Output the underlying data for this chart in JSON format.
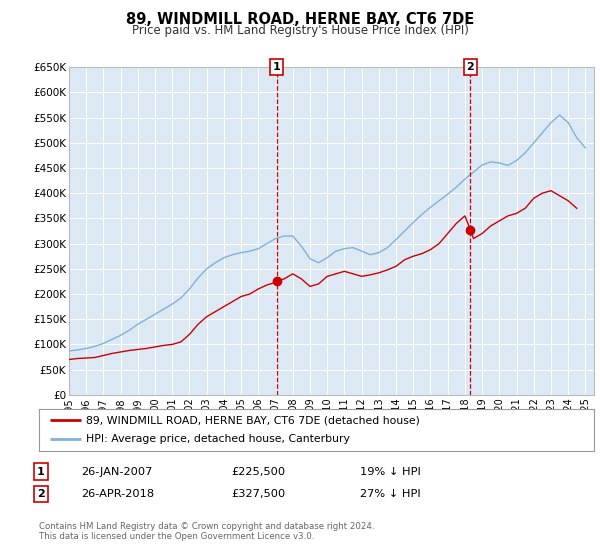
{
  "title": "89, WINDMILL ROAD, HERNE BAY, CT6 7DE",
  "subtitle": "Price paid vs. HM Land Registry's House Price Index (HPI)",
  "bg_color": "#dce9f5",
  "fig_bg_color": "#ffffff",
  "ylim": [
    0,
    650000
  ],
  "yticks": [
    0,
    50000,
    100000,
    150000,
    200000,
    250000,
    300000,
    350000,
    400000,
    450000,
    500000,
    550000,
    600000,
    650000
  ],
  "ytick_labels": [
    "£0",
    "£50K",
    "£100K",
    "£150K",
    "£200K",
    "£250K",
    "£300K",
    "£350K",
    "£400K",
    "£450K",
    "£500K",
    "£550K",
    "£600K",
    "£650K"
  ],
  "xlim_start": 1995.0,
  "xlim_end": 2025.5,
  "xticks": [
    1995,
    1996,
    1997,
    1998,
    1999,
    2000,
    2001,
    2002,
    2003,
    2004,
    2005,
    2006,
    2007,
    2008,
    2009,
    2010,
    2011,
    2012,
    2013,
    2014,
    2015,
    2016,
    2017,
    2018,
    2019,
    2020,
    2021,
    2022,
    2023,
    2024,
    2025
  ],
  "red_line_color": "#cc0000",
  "blue_line_color": "#7fb2d8",
  "marker1_x": 2007.07,
  "marker1_y": 225500,
  "marker2_x": 2018.32,
  "marker2_y": 327500,
  "vline1_x": 2007.07,
  "vline2_x": 2018.32,
  "legend_label_red": "89, WINDMILL ROAD, HERNE BAY, CT6 7DE (detached house)",
  "legend_label_blue": "HPI: Average price, detached house, Canterbury",
  "annotation1_label": "1",
  "annotation1_date": "26-JAN-2007",
  "annotation1_price": "£225,500",
  "annotation1_hpi": "19% ↓ HPI",
  "annotation2_label": "2",
  "annotation2_date": "26-APR-2018",
  "annotation2_price": "£327,500",
  "annotation2_hpi": "27% ↓ HPI",
  "footer": "Contains HM Land Registry data © Crown copyright and database right 2024.\nThis data is licensed under the Open Government Licence v3.0.",
  "red_data_x": [
    1995.0,
    1995.5,
    1996.0,
    1996.5,
    1997.0,
    1997.5,
    1998.0,
    1998.5,
    1999.0,
    1999.5,
    2000.0,
    2000.5,
    2001.0,
    2001.5,
    2002.0,
    2002.5,
    2003.0,
    2003.5,
    2004.0,
    2004.5,
    2005.0,
    2005.5,
    2006.0,
    2006.5,
    2007.0,
    2007.07,
    2007.5,
    2008.0,
    2008.5,
    2009.0,
    2009.5,
    2010.0,
    2010.5,
    2011.0,
    2011.5,
    2012.0,
    2012.5,
    2013.0,
    2013.5,
    2014.0,
    2014.5,
    2015.0,
    2015.5,
    2016.0,
    2016.5,
    2017.0,
    2017.5,
    2018.0,
    2018.32,
    2018.5,
    2019.0,
    2019.5,
    2020.0,
    2020.5,
    2021.0,
    2021.5,
    2022.0,
    2022.5,
    2023.0,
    2023.5,
    2024.0,
    2024.5
  ],
  "red_data_y": [
    70000,
    72000,
    73000,
    74000,
    78000,
    82000,
    85000,
    88000,
    90000,
    92000,
    95000,
    98000,
    100000,
    105000,
    120000,
    140000,
    155000,
    165000,
    175000,
    185000,
    195000,
    200000,
    210000,
    218000,
    223000,
    225500,
    230000,
    240000,
    230000,
    215000,
    220000,
    235000,
    240000,
    245000,
    240000,
    235000,
    238000,
    242000,
    248000,
    255000,
    268000,
    275000,
    280000,
    288000,
    300000,
    320000,
    340000,
    355000,
    327500,
    310000,
    320000,
    335000,
    345000,
    355000,
    360000,
    370000,
    390000,
    400000,
    405000,
    395000,
    385000,
    370000
  ],
  "blue_data_x": [
    1995.0,
    1995.5,
    1996.0,
    1996.5,
    1997.0,
    1997.5,
    1998.0,
    1998.5,
    1999.0,
    1999.5,
    2000.0,
    2000.5,
    2001.0,
    2001.5,
    2002.0,
    2002.5,
    2003.0,
    2003.5,
    2004.0,
    2004.5,
    2005.0,
    2005.5,
    2006.0,
    2006.5,
    2007.0,
    2007.5,
    2008.0,
    2008.5,
    2009.0,
    2009.5,
    2010.0,
    2010.5,
    2011.0,
    2011.5,
    2012.0,
    2012.5,
    2013.0,
    2013.5,
    2014.0,
    2014.5,
    2015.0,
    2015.5,
    2016.0,
    2016.5,
    2017.0,
    2017.5,
    2018.0,
    2018.5,
    2019.0,
    2019.5,
    2020.0,
    2020.5,
    2021.0,
    2021.5,
    2022.0,
    2022.5,
    2023.0,
    2023.5,
    2024.0,
    2024.5,
    2025.0
  ],
  "blue_data_y": [
    87000,
    89000,
    92000,
    96000,
    102000,
    110000,
    118000,
    128000,
    140000,
    150000,
    160000,
    170000,
    180000,
    192000,
    210000,
    232000,
    250000,
    262000,
    272000,
    278000,
    282000,
    285000,
    290000,
    300000,
    310000,
    315000,
    315000,
    295000,
    270000,
    262000,
    272000,
    285000,
    290000,
    292000,
    285000,
    278000,
    282000,
    292000,
    308000,
    325000,
    342000,
    358000,
    372000,
    385000,
    398000,
    412000,
    428000,
    442000,
    456000,
    462000,
    460000,
    455000,
    465000,
    480000,
    500000,
    520000,
    540000,
    555000,
    540000,
    510000,
    490000
  ]
}
